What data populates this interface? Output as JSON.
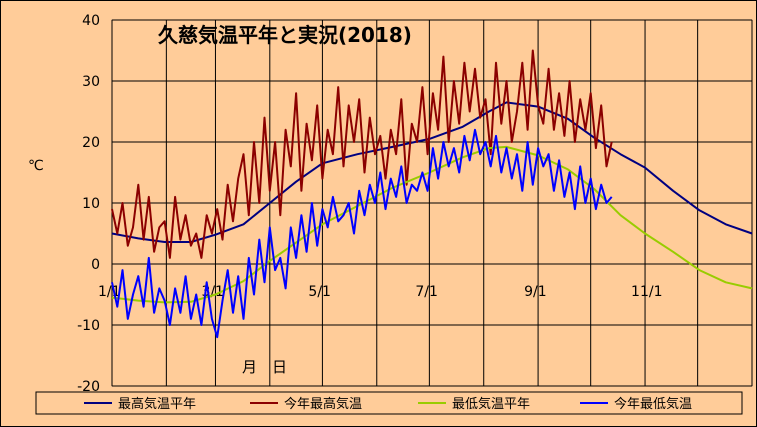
{
  "chart_data": {
    "type": "line",
    "title": "久慈気温平年と実況(2018)",
    "ylabel": "℃",
    "xlabel": "月　日",
    "ylim": [
      -20,
      40
    ],
    "yticks": [
      "-20",
      "-10",
      "0",
      "10",
      "20",
      "30",
      "40"
    ],
    "xticks": [
      {
        "label": "1/1",
        "day": 0
      },
      {
        "label": "3/1",
        "day": 59
      },
      {
        "label": "5/1",
        "day": 120
      },
      {
        "label": "7/1",
        "day": 181
      },
      {
        "label": "9/1",
        "day": 243
      },
      {
        "label": "11/1",
        "day": 304
      }
    ],
    "xlim": [
      0,
      365
    ],
    "grid": true,
    "legend_position": "bottom",
    "series": [
      {
        "name": "最高気温平年",
        "color": "#000080",
        "points": [
          [
            0,
            5
          ],
          [
            15,
            4.2
          ],
          [
            30,
            3.6
          ],
          [
            45,
            3.6
          ],
          [
            59,
            4.8
          ],
          [
            75,
            6.5
          ],
          [
            90,
            10
          ],
          [
            105,
            13.5
          ],
          [
            120,
            16.5
          ],
          [
            140,
            18
          ],
          [
            160,
            19.2
          ],
          [
            181,
            20.5
          ],
          [
            200,
            22.5
          ],
          [
            215,
            25
          ],
          [
            225,
            26.5
          ],
          [
            243,
            25.8
          ],
          [
            260,
            23.8
          ],
          [
            275,
            20.7
          ],
          [
            290,
            18
          ],
          [
            304,
            15.8
          ],
          [
            320,
            12
          ],
          [
            335,
            8.8
          ],
          [
            350,
            6.5
          ],
          [
            365,
            5
          ]
        ]
      },
      {
        "name": "今年最高気温",
        "color": "#8b0000",
        "points": [
          [
            0,
            9
          ],
          [
            3,
            5
          ],
          [
            6,
            10
          ],
          [
            9,
            3
          ],
          [
            12,
            6
          ],
          [
            15,
            13
          ],
          [
            18,
            4
          ],
          [
            21,
            11
          ],
          [
            24,
            2
          ],
          [
            27,
            6
          ],
          [
            30,
            7
          ],
          [
            33,
            1
          ],
          [
            36,
            11
          ],
          [
            39,
            4
          ],
          [
            42,
            8
          ],
          [
            45,
            3
          ],
          [
            48,
            5
          ],
          [
            51,
            1
          ],
          [
            54,
            8
          ],
          [
            57,
            5
          ],
          [
            60,
            9
          ],
          [
            63,
            4
          ],
          [
            66,
            13
          ],
          [
            69,
            7
          ],
          [
            72,
            14
          ],
          [
            75,
            18
          ],
          [
            78,
            8
          ],
          [
            81,
            20
          ],
          [
            84,
            10
          ],
          [
            87,
            24
          ],
          [
            90,
            12
          ],
          [
            93,
            20
          ],
          [
            96,
            8
          ],
          [
            99,
            22
          ],
          [
            102,
            16
          ],
          [
            105,
            28
          ],
          [
            108,
            12
          ],
          [
            111,
            23
          ],
          [
            114,
            17
          ],
          [
            117,
            26
          ],
          [
            120,
            14
          ],
          [
            123,
            22
          ],
          [
            126,
            18
          ],
          [
            129,
            29
          ],
          [
            132,
            16
          ],
          [
            135,
            26
          ],
          [
            138,
            20
          ],
          [
            141,
            27
          ],
          [
            144,
            15
          ],
          [
            147,
            24
          ],
          [
            150,
            18
          ],
          [
            153,
            21
          ],
          [
            156,
            14
          ],
          [
            159,
            22
          ],
          [
            162,
            18
          ],
          [
            165,
            27
          ],
          [
            168,
            13
          ],
          [
            171,
            23
          ],
          [
            174,
            20
          ],
          [
            177,
            29
          ],
          [
            180,
            18
          ],
          [
            183,
            28
          ],
          [
            186,
            22
          ],
          [
            189,
            34
          ],
          [
            192,
            20
          ],
          [
            195,
            30
          ],
          [
            198,
            23
          ],
          [
            201,
            33
          ],
          [
            204,
            25
          ],
          [
            207,
            32
          ],
          [
            210,
            24
          ],
          [
            213,
            27
          ],
          [
            216,
            18
          ],
          [
            219,
            33
          ],
          [
            222,
            23
          ],
          [
            225,
            30
          ],
          [
            228,
            20
          ],
          [
            231,
            25
          ],
          [
            234,
            33
          ],
          [
            237,
            22
          ],
          [
            240,
            35
          ],
          [
            243,
            26
          ],
          [
            246,
            23
          ],
          [
            249,
            32
          ],
          [
            252,
            22
          ],
          [
            255,
            28
          ],
          [
            258,
            21
          ],
          [
            261,
            30
          ],
          [
            264,
            20
          ],
          [
            267,
            27
          ],
          [
            270,
            22
          ],
          [
            273,
            28
          ],
          [
            276,
            19
          ],
          [
            279,
            26
          ],
          [
            282,
            16
          ],
          [
            285,
            20
          ]
        ]
      },
      {
        "name": "最低気温平年",
        "color": "#99cc00",
        "points": [
          [
            0,
            -5.5
          ],
          [
            15,
            -6
          ],
          [
            30,
            -6.3
          ],
          [
            45,
            -6.2
          ],
          [
            59,
            -5
          ],
          [
            75,
            -2.8
          ],
          [
            90,
            0.5
          ],
          [
            105,
            3.5
          ],
          [
            120,
            6.5
          ],
          [
            140,
            9.5
          ],
          [
            160,
            12.5
          ],
          [
            181,
            15
          ],
          [
            200,
            17.5
          ],
          [
            215,
            19
          ],
          [
            225,
            19.2
          ],
          [
            243,
            17.8
          ],
          [
            260,
            15.5
          ],
          [
            275,
            12.3
          ],
          [
            290,
            8
          ],
          [
            304,
            5
          ],
          [
            320,
            2
          ],
          [
            335,
            -1
          ],
          [
            350,
            -3
          ],
          [
            365,
            -4
          ]
        ]
      },
      {
        "name": "今年最低気温",
        "color": "#0000ff",
        "points": [
          [
            0,
            -3
          ],
          [
            3,
            -7
          ],
          [
            6,
            -1
          ],
          [
            9,
            -9
          ],
          [
            12,
            -5
          ],
          [
            15,
            -2
          ],
          [
            18,
            -7
          ],
          [
            21,
            1
          ],
          [
            24,
            -8
          ],
          [
            27,
            -4
          ],
          [
            30,
            -6
          ],
          [
            33,
            -10
          ],
          [
            36,
            -4
          ],
          [
            39,
            -8
          ],
          [
            42,
            -2
          ],
          [
            45,
            -9
          ],
          [
            48,
            -5
          ],
          [
            51,
            -10
          ],
          [
            54,
            -3
          ],
          [
            57,
            -9
          ],
          [
            60,
            -12
          ],
          [
            63,
            -6
          ],
          [
            66,
            -1
          ],
          [
            69,
            -8
          ],
          [
            72,
            -2
          ],
          [
            75,
            -9
          ],
          [
            78,
            1
          ],
          [
            81,
            -5
          ],
          [
            84,
            4
          ],
          [
            87,
            -3
          ],
          [
            90,
            6
          ],
          [
            93,
            -1
          ],
          [
            96,
            1
          ],
          [
            99,
            -4
          ],
          [
            102,
            6
          ],
          [
            105,
            1
          ],
          [
            108,
            8
          ],
          [
            111,
            2
          ],
          [
            114,
            10
          ],
          [
            117,
            3
          ],
          [
            120,
            9
          ],
          [
            123,
            6
          ],
          [
            126,
            11
          ],
          [
            129,
            7
          ],
          [
            132,
            8
          ],
          [
            135,
            10
          ],
          [
            138,
            5
          ],
          [
            141,
            12
          ],
          [
            144,
            8
          ],
          [
            147,
            13
          ],
          [
            150,
            10
          ],
          [
            153,
            15
          ],
          [
            156,
            9
          ],
          [
            159,
            14
          ],
          [
            162,
            11
          ],
          [
            165,
            16
          ],
          [
            168,
            10
          ],
          [
            171,
            13
          ],
          [
            174,
            12
          ],
          [
            177,
            15
          ],
          [
            180,
            12
          ],
          [
            183,
            19
          ],
          [
            186,
            14
          ],
          [
            189,
            20
          ],
          [
            192,
            16
          ],
          [
            195,
            19
          ],
          [
            198,
            15
          ],
          [
            201,
            21
          ],
          [
            204,
            17
          ],
          [
            207,
            22
          ],
          [
            210,
            18
          ],
          [
            213,
            20
          ],
          [
            216,
            16
          ],
          [
            219,
            21
          ],
          [
            222,
            15
          ],
          [
            225,
            19
          ],
          [
            228,
            14
          ],
          [
            231,
            18
          ],
          [
            234,
            12
          ],
          [
            237,
            20
          ],
          [
            240,
            13
          ],
          [
            243,
            19
          ],
          [
            246,
            16
          ],
          [
            249,
            18
          ],
          [
            252,
            12
          ],
          [
            255,
            17
          ],
          [
            258,
            11
          ],
          [
            261,
            15
          ],
          [
            264,
            9
          ],
          [
            267,
            16
          ],
          [
            270,
            10
          ],
          [
            273,
            14
          ],
          [
            276,
            9
          ],
          [
            279,
            13
          ],
          [
            282,
            10
          ],
          [
            285,
            11
          ]
        ]
      }
    ]
  }
}
